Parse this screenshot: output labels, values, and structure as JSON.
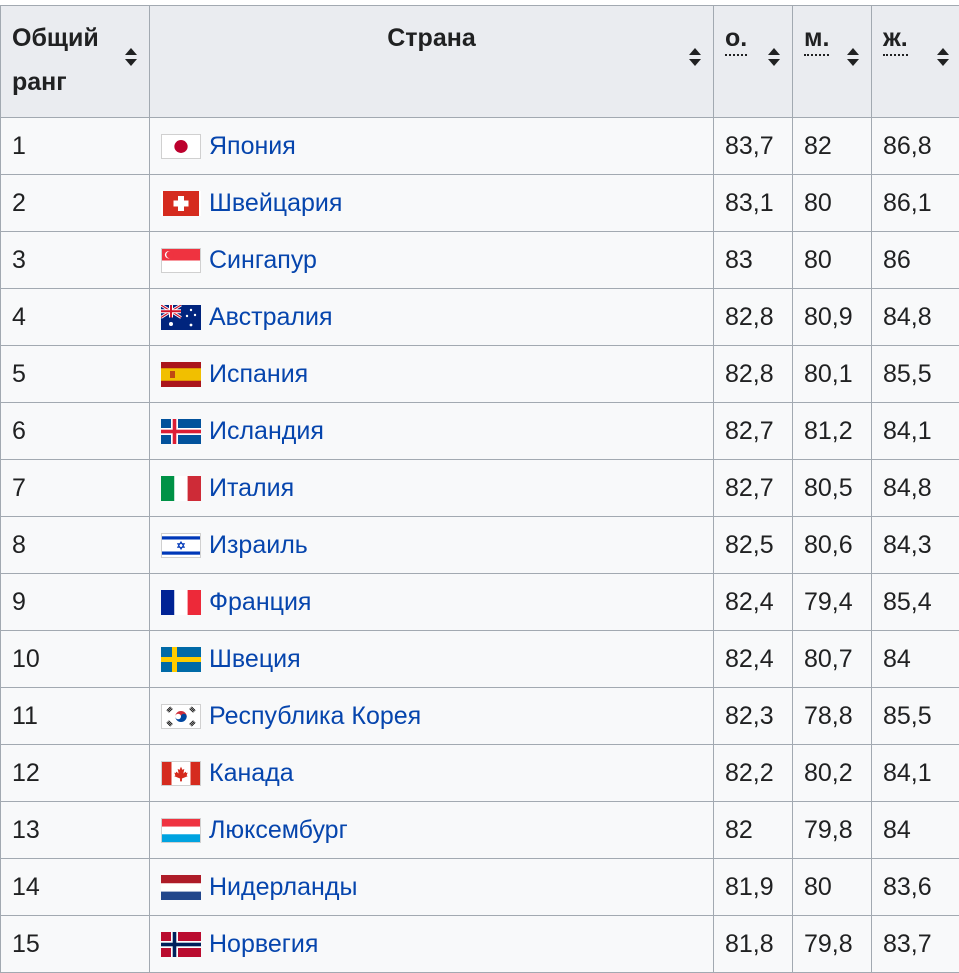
{
  "table": {
    "headers": {
      "rank_line1": "Общий",
      "rank_line2": "ранг",
      "country": "Страна",
      "overall": "о.",
      "male": "м.",
      "female": "ж."
    },
    "rows": [
      {
        "rank": "1",
        "country": "Япония",
        "flag": "japan-flag",
        "overall": "83,7",
        "male": "82",
        "female": "86,8"
      },
      {
        "rank": "2",
        "country": "Швейцария",
        "flag": "switzerland-flag",
        "overall": "83,1",
        "male": "80",
        "female": "86,1"
      },
      {
        "rank": "3",
        "country": "Сингапур",
        "flag": "singapore-flag",
        "overall": "83",
        "male": "80",
        "female": "86"
      },
      {
        "rank": "4",
        "country": "Австралия",
        "flag": "australia-flag",
        "overall": "82,8",
        "male": "80,9",
        "female": "84,8"
      },
      {
        "rank": "5",
        "country": "Испания",
        "flag": "spain-flag",
        "overall": "82,8",
        "male": "80,1",
        "female": "85,5"
      },
      {
        "rank": "6",
        "country": "Исландия",
        "flag": "iceland-flag",
        "overall": "82,7",
        "male": "81,2",
        "female": "84,1"
      },
      {
        "rank": "7",
        "country": "Италия",
        "flag": "italy-flag",
        "overall": "82,7",
        "male": "80,5",
        "female": "84,8"
      },
      {
        "rank": "8",
        "country": "Израиль",
        "flag": "israel-flag",
        "overall": "82,5",
        "male": "80,6",
        "female": "84,3"
      },
      {
        "rank": "9",
        "country": "Франция",
        "flag": "france-flag",
        "overall": "82,4",
        "male": "79,4",
        "female": "85,4"
      },
      {
        "rank": "10",
        "country": "Швеция",
        "flag": "sweden-flag",
        "overall": "82,4",
        "male": "80,7",
        "female": "84"
      },
      {
        "rank": "11",
        "country": "Республика Корея",
        "flag": "south-korea-flag",
        "overall": "82,3",
        "male": "78,8",
        "female": "85,5"
      },
      {
        "rank": "12",
        "country": "Канада",
        "flag": "canada-flag",
        "overall": "82,2",
        "male": "80,2",
        "female": "84,1"
      },
      {
        "rank": "13",
        "country": "Люксембург",
        "flag": "luxembourg-flag",
        "overall": "82",
        "male": "79,8",
        "female": "84"
      },
      {
        "rank": "14",
        "country": "Нидерланды",
        "flag": "netherlands-flag",
        "overall": "81,9",
        "male": "80",
        "female": "83,6"
      },
      {
        "rank": "15",
        "country": "Норвегия",
        "flag": "norway-flag",
        "overall": "81,8",
        "male": "79,8",
        "female": "83,7"
      }
    ]
  },
  "colors": {
    "link": "#0645ad",
    "header_bg": "#eaecf0",
    "cell_bg": "#f8f9fa",
    "border": "#a2a9b1"
  }
}
